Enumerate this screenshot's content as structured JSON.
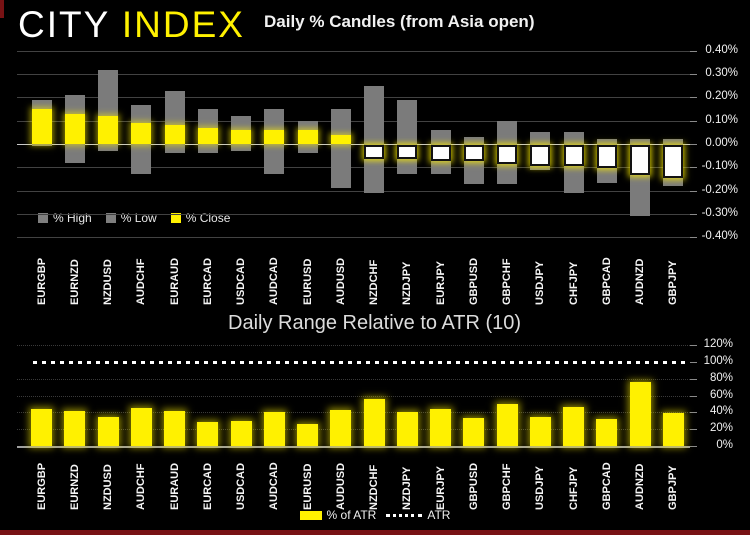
{
  "logo": {
    "city": "CITY",
    "index": "INDEX"
  },
  "accent": {
    "yellow": "#fff100",
    "gray": "#7f7f7f",
    "red_strip": "#781214",
    "background": "#000000"
  },
  "chart_data": [
    {
      "type": "bar",
      "subtype": "high-low-close-candles",
      "title": "Daily % Candles (from Asia open)",
      "categories": [
        "EURGBP",
        "EURNZD",
        "NZDUSD",
        "AUDCHF",
        "EURAUD",
        "EURCAD",
        "USDCAD",
        "AUDCAD",
        "EURUSD",
        "AUDUSD",
        "NZDCHF",
        "NZDJPY",
        "EURJPY",
        "GBPUSD",
        "GBPCHF",
        "USDJPY",
        "CHFJPY",
        "GBPCAD",
        "AUDNZD",
        "GBPJPY"
      ],
      "series": [
        {
          "name": "% High",
          "color": "#7f7f7f",
          "values": [
            0.19,
            0.21,
            0.32,
            0.17,
            0.23,
            0.15,
            0.12,
            0.15,
            0.1,
            0.15,
            0.25,
            0.19,
            0.06,
            0.03,
            0.1,
            0.05,
            0.05,
            0.02,
            0.02,
            0.02
          ]
        },
        {
          "name": "% Low",
          "color": "#7f7f7f",
          "values": [
            -0.01,
            -0.08,
            -0.03,
            -0.13,
            -0.04,
            -0.04,
            -0.03,
            -0.13,
            -0.04,
            -0.19,
            -0.21,
            -0.13,
            -0.13,
            -0.17,
            -0.17,
            -0.11,
            -0.21,
            -0.17,
            -0.31,
            -0.18
          ]
        },
        {
          "name": "% Close",
          "color": "#fff100",
          "values": [
            0.15,
            0.13,
            0.12,
            0.09,
            0.08,
            0.07,
            0.06,
            0.06,
            0.06,
            0.04,
            -0.06,
            -0.06,
            -0.07,
            -0.07,
            -0.08,
            -0.09,
            -0.09,
            -0.1,
            -0.13,
            -0.14
          ]
        }
      ],
      "ylim": [
        -0.4,
        0.4
      ],
      "y_ticks": [
        "0.40%",
        "0.30%",
        "0.20%",
        "0.10%",
        "0.00%",
        "-0.10%",
        "-0.20%",
        "-0.30%",
        "-0.40%"
      ],
      "legend_position": "inside-bottom-left",
      "grid": "solid",
      "axis_side": "right"
    },
    {
      "type": "bar",
      "title": "Daily Range Relative to ATR (10)",
      "categories": [
        "EURGBP",
        "EURNZD",
        "NZDUSD",
        "AUDCHF",
        "EURAUD",
        "EURCAD",
        "USDCAD",
        "AUDCAD",
        "EURUSD",
        "AUDUSD",
        "NZDCHF",
        "NZDJPY",
        "EURJPY",
        "GBPUSD",
        "GBPCHF",
        "USDJPY",
        "CHFJPY",
        "GBPCAD",
        "AUDNZD",
        "GBPJPY"
      ],
      "series": [
        {
          "name": "% of ATR",
          "color": "#fff100",
          "values": [
            44,
            42,
            34,
            45,
            42,
            28,
            30,
            40,
            26,
            43,
            56,
            40,
            44,
            33,
            50,
            35,
            46,
            32,
            76,
            39
          ]
        }
      ],
      "reference_line": {
        "name": "ATR",
        "value": 100,
        "style": "dotted",
        "color": "#ffffff"
      },
      "ylim": [
        0,
        120
      ],
      "y_ticks": [
        "120%",
        "100%",
        "80%",
        "60%",
        "40%",
        "20%",
        "0%"
      ],
      "legend_position": "below-center",
      "grid": "dotted",
      "axis_side": "right"
    }
  ]
}
